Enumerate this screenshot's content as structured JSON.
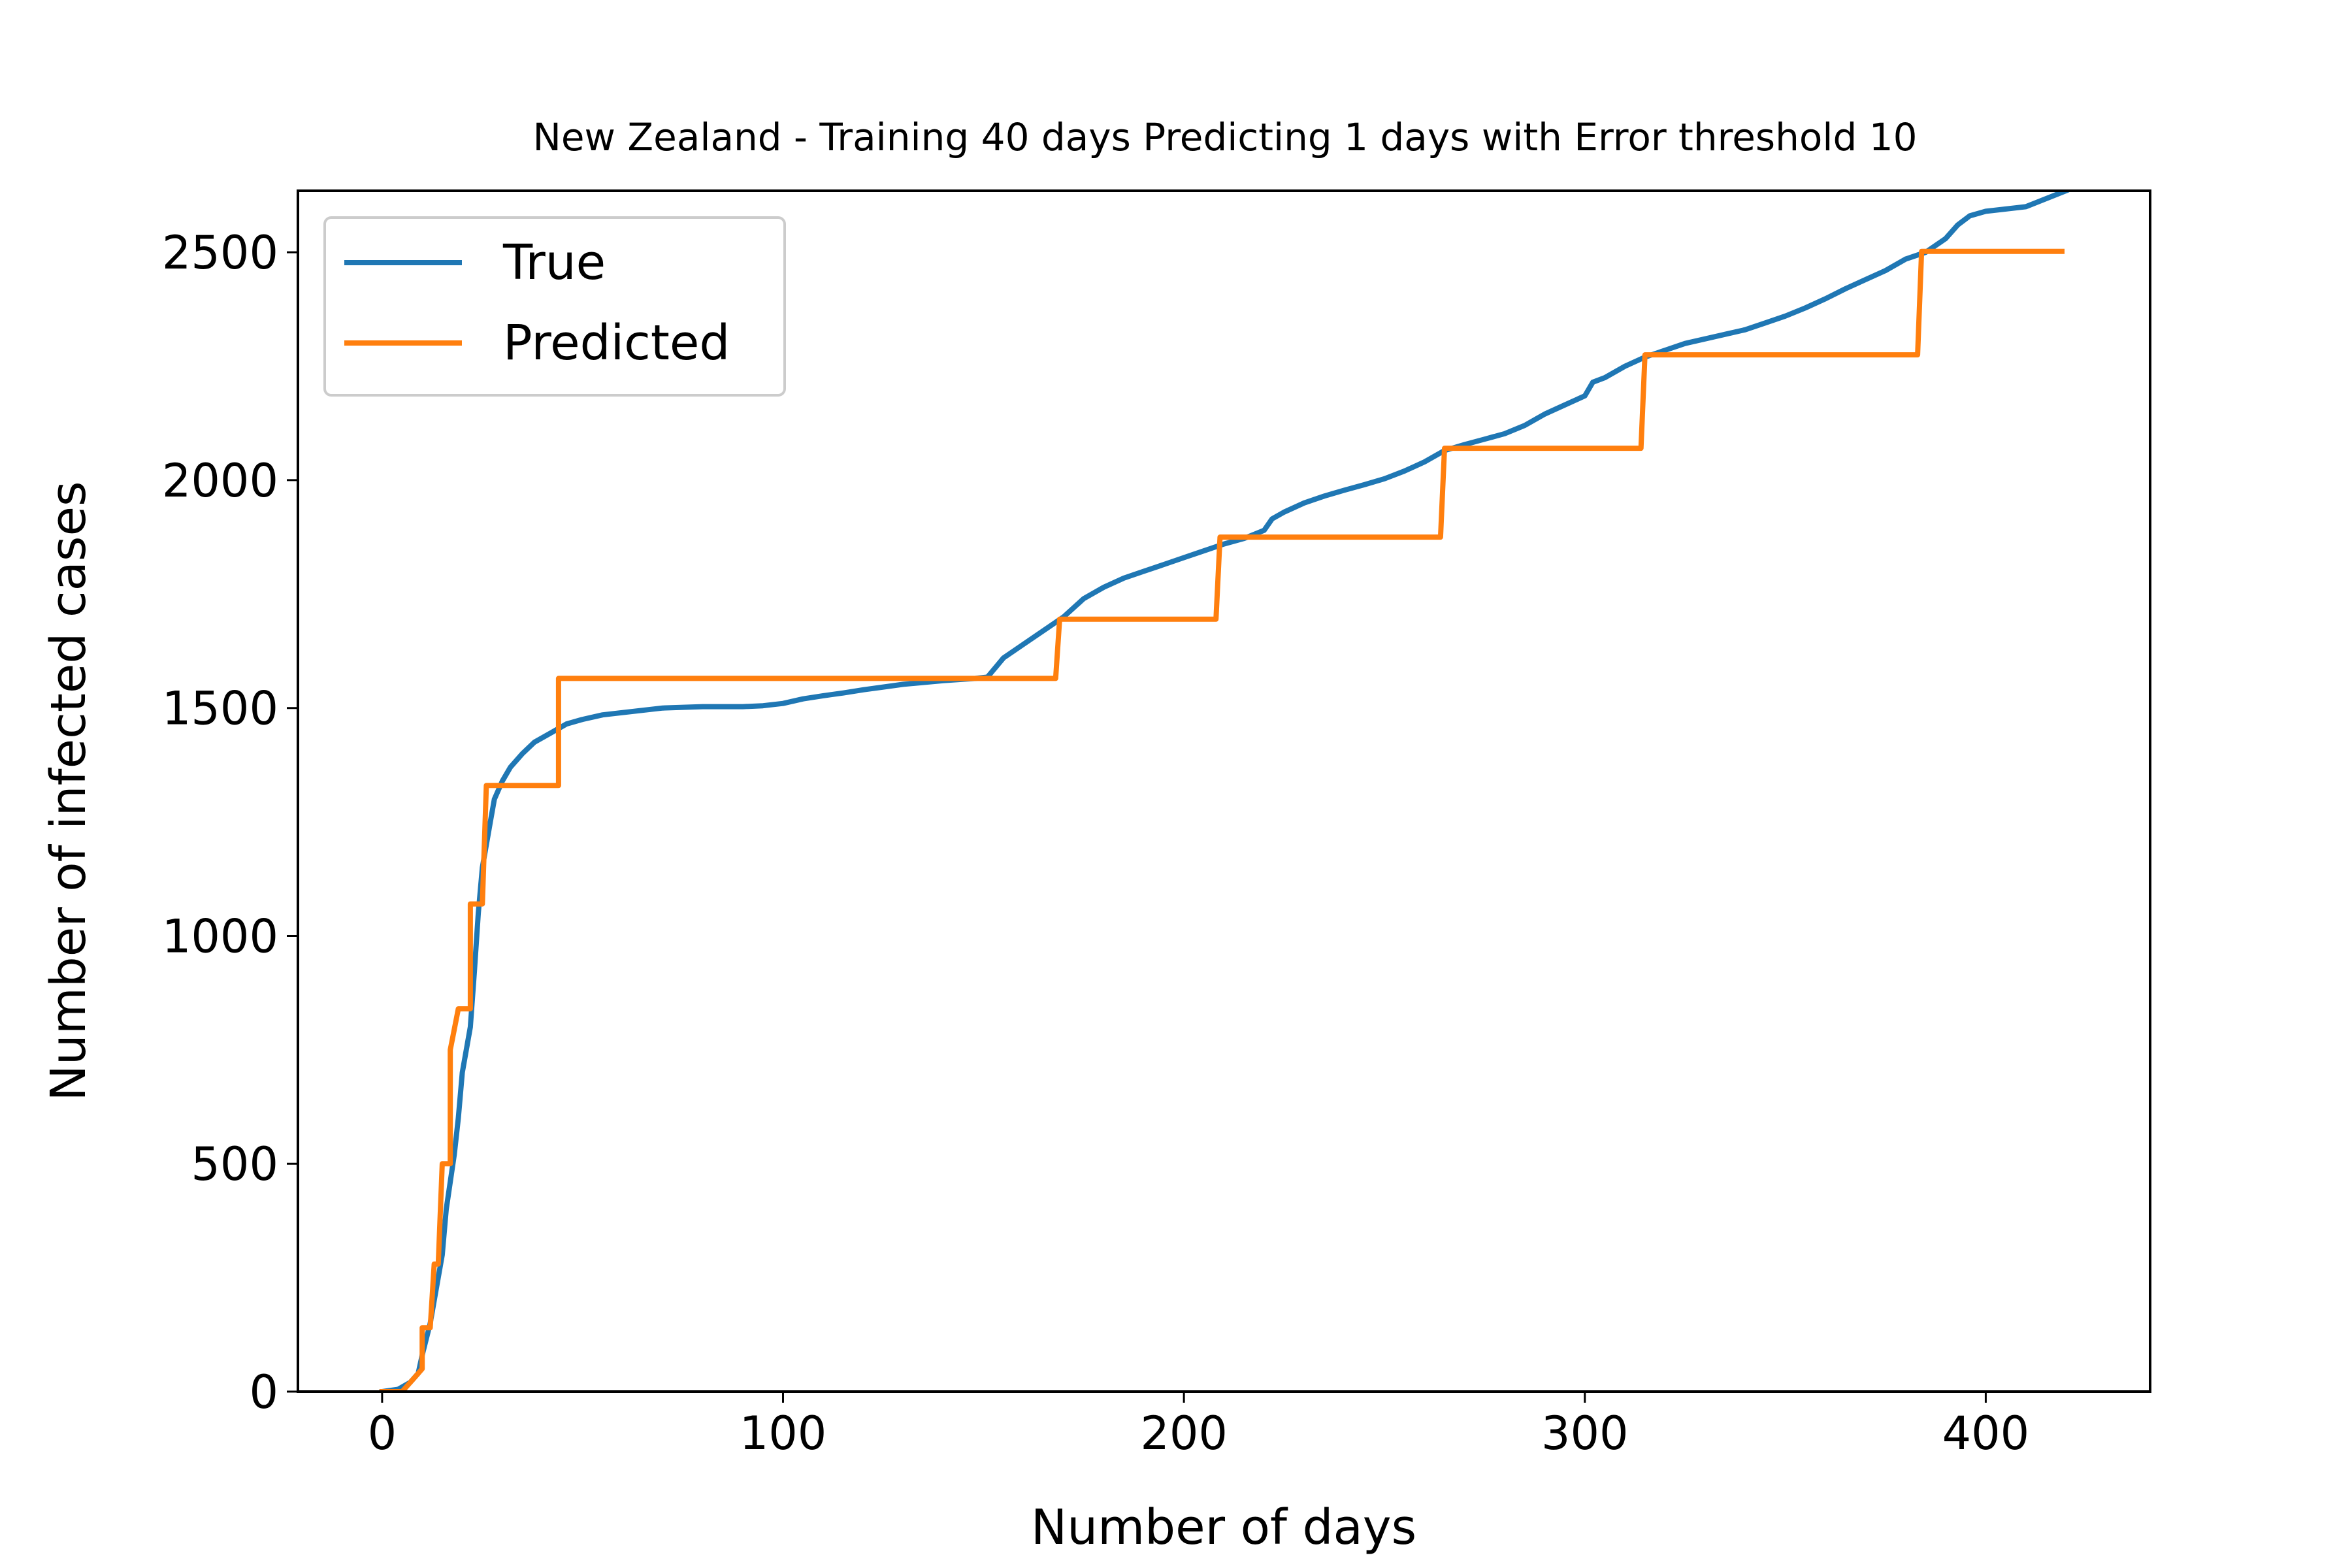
{
  "chart_data": {
    "type": "line",
    "title": "New Zealand - Training 40 days Predicting 1 days with Error threshold 10",
    "xlabel": "Number of days",
    "ylabel": "Number of infected cases",
    "xlim": [
      -21,
      441
    ],
    "ylim": [
      0,
      2635
    ],
    "xticks": [
      0,
      100,
      200,
      300,
      400
    ],
    "yticks": [
      0,
      500,
      1000,
      1500,
      2000,
      2500
    ],
    "xtick_labels": [
      "0",
      "100",
      "200",
      "300",
      "400"
    ],
    "ytick_labels": [
      "0",
      "500",
      "1000",
      "1500",
      "2000",
      "2500"
    ],
    "grid": false,
    "legend": {
      "position": "top-left",
      "entries": [
        "True",
        "Predicted"
      ]
    },
    "series": [
      {
        "name": "True",
        "color": "#1f77b4",
        "points": [
          [
            0,
            0
          ],
          [
            4,
            5
          ],
          [
            7,
            20
          ],
          [
            9,
            40
          ],
          [
            10,
            80
          ],
          [
            12,
            150
          ],
          [
            13,
            200
          ],
          [
            15,
            300
          ],
          [
            16,
            400
          ],
          [
            18,
            520
          ],
          [
            19,
            600
          ],
          [
            20,
            700
          ],
          [
            22,
            800
          ],
          [
            23,
            920
          ],
          [
            24,
            1050
          ],
          [
            25,
            1150
          ],
          [
            27,
            1250
          ],
          [
            28,
            1300
          ],
          [
            30,
            1340
          ],
          [
            32,
            1370
          ],
          [
            35,
            1400
          ],
          [
            38,
            1425
          ],
          [
            42,
            1445
          ],
          [
            46,
            1465
          ],
          [
            50,
            1475
          ],
          [
            55,
            1485
          ],
          [
            60,
            1490
          ],
          [
            65,
            1495
          ],
          [
            70,
            1500
          ],
          [
            80,
            1503
          ],
          [
            90,
            1503
          ],
          [
            95,
            1505
          ],
          [
            100,
            1510
          ],
          [
            105,
            1520
          ],
          [
            110,
            1527
          ],
          [
            115,
            1533
          ],
          [
            120,
            1540
          ],
          [
            125,
            1546
          ],
          [
            130,
            1552
          ],
          [
            140,
            1560
          ],
          [
            148,
            1565
          ],
          [
            151,
            1568
          ],
          [
            155,
            1610
          ],
          [
            160,
            1640
          ],
          [
            165,
            1670
          ],
          [
            170,
            1700
          ],
          [
            175,
            1740
          ],
          [
            180,
            1765
          ],
          [
            185,
            1785
          ],
          [
            190,
            1800
          ],
          [
            195,
            1815
          ],
          [
            200,
            1830
          ],
          [
            205,
            1845
          ],
          [
            210,
            1860
          ],
          [
            215,
            1872
          ],
          [
            220,
            1890
          ],
          [
            222,
            1915
          ],
          [
            225,
            1930
          ],
          [
            230,
            1950
          ],
          [
            235,
            1965
          ],
          [
            240,
            1978
          ],
          [
            245,
            1990
          ],
          [
            250,
            2003
          ],
          [
            255,
            2020
          ],
          [
            260,
            2040
          ],
          [
            265,
            2065
          ],
          [
            270,
            2078
          ],
          [
            275,
            2090
          ],
          [
            280,
            2102
          ],
          [
            285,
            2120
          ],
          [
            290,
            2145
          ],
          [
            295,
            2165
          ],
          [
            300,
            2185
          ],
          [
            302,
            2215
          ],
          [
            305,
            2225
          ],
          [
            310,
            2250
          ],
          [
            315,
            2270
          ],
          [
            320,
            2285
          ],
          [
            325,
            2300
          ],
          [
            330,
            2310
          ],
          [
            335,
            2320
          ],
          [
            340,
            2330
          ],
          [
            345,
            2345
          ],
          [
            350,
            2360
          ],
          [
            355,
            2378
          ],
          [
            360,
            2398
          ],
          [
            365,
            2420
          ],
          [
            370,
            2440
          ],
          [
            375,
            2460
          ],
          [
            380,
            2485
          ],
          [
            385,
            2500
          ],
          [
            390,
            2530
          ],
          [
            393,
            2560
          ],
          [
            396,
            2580
          ],
          [
            400,
            2590
          ],
          [
            410,
            2600
          ],
          [
            420,
            2635
          ]
        ]
      },
      {
        "name": "Predicted",
        "color": "#ff7f0e",
        "points": [
          [
            0,
            0
          ],
          [
            5,
            0
          ],
          [
            6,
            10
          ],
          [
            8,
            30
          ],
          [
            10,
            50
          ],
          [
            10,
            140
          ],
          [
            12,
            140
          ],
          [
            13,
            280
          ],
          [
            14,
            280
          ],
          [
            15,
            500
          ],
          [
            17,
            500
          ],
          [
            17,
            750
          ],
          [
            19,
            840
          ],
          [
            22,
            840
          ],
          [
            22,
            1070
          ],
          [
            25,
            1070
          ],
          [
            26,
            1330
          ],
          [
            44,
            1330
          ],
          [
            44,
            1565
          ],
          [
            168,
            1565
          ],
          [
            169,
            1695
          ],
          [
            208,
            1695
          ],
          [
            209,
            1875
          ],
          [
            264,
            1875
          ],
          [
            265,
            2070
          ],
          [
            314,
            2070
          ],
          [
            315,
            2275
          ],
          [
            383,
            2275
          ],
          [
            384,
            2502
          ],
          [
            419,
            2502
          ]
        ]
      }
    ]
  }
}
